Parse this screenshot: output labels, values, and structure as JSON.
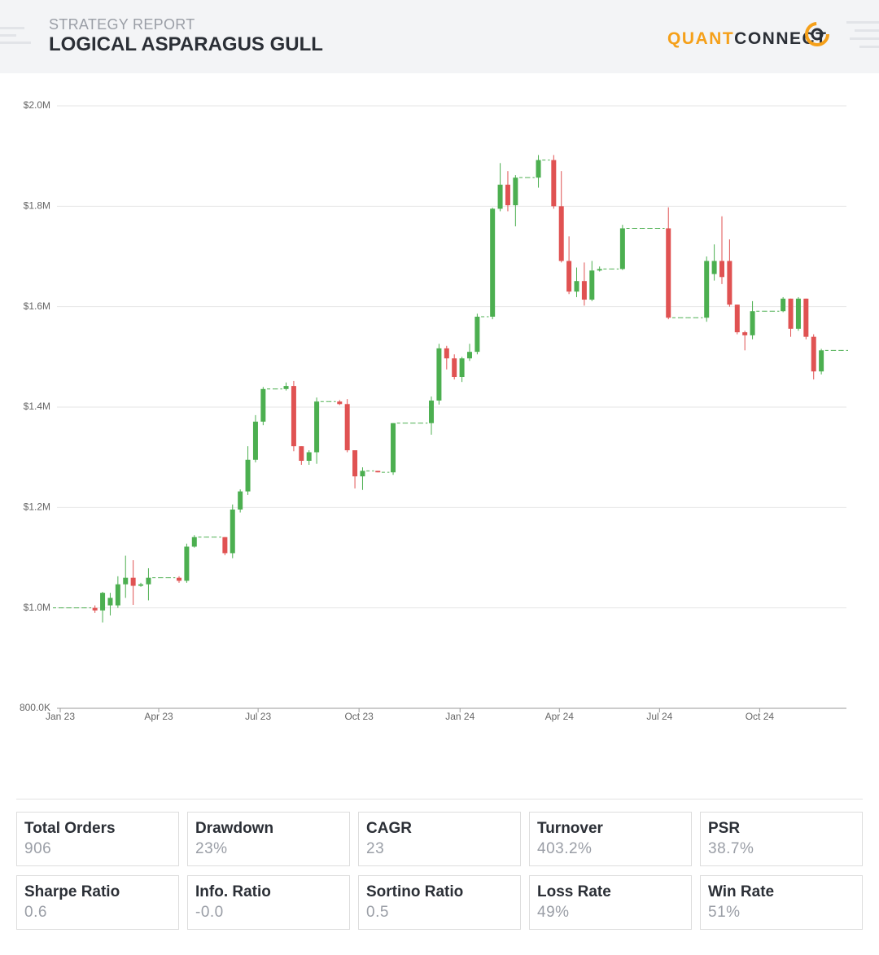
{
  "header": {
    "subtitle": "STRATEGY REPORT",
    "title": "LOGICAL ASPARAGUS GULL",
    "logo_primary": "QUANT",
    "logo_secondary": "CONNECT"
  },
  "chart_data": {
    "type": "candlestick",
    "categories": [
      null,
      null,
      null,
      null,
      null,
      null,
      null,
      null,
      null,
      null,
      null,
      null,
      null,
      null,
      null,
      null,
      null,
      null,
      null,
      null,
      null,
      null,
      null,
      null,
      null,
      null,
      null,
      null,
      null,
      null,
      null,
      null,
      null,
      null,
      null,
      null,
      null,
      null,
      null,
      null,
      null,
      null,
      null,
      null,
      null,
      null,
      null,
      null,
      null,
      null,
      null,
      null,
      null,
      null,
      null,
      null,
      null,
      null,
      null,
      null,
      null,
      null,
      null,
      null,
      null,
      null,
      null,
      null,
      null,
      null,
      null,
      null,
      null,
      null,
      null,
      null,
      null,
      null,
      null,
      null,
      null,
      null,
      null,
      null,
      null,
      null,
      null,
      null,
      null,
      null,
      null,
      null,
      null,
      null,
      null,
      null,
      null,
      null,
      null,
      null,
      null,
      null,
      null,
      null
    ],
    "open": [
      1000000,
      1000000,
      1000000,
      1000000,
      1000000,
      1000000,
      995000,
      1005000,
      1005000,
      1047000,
      1060000,
      1044000,
      1047000,
      1060000,
      1060000,
      1060000,
      1060000,
      1054000,
      1122000,
      1141000,
      1141000,
      1141000,
      1141000,
      1109000,
      1196000,
      1232000,
      1295000,
      1371000,
      1436000,
      1436000,
      1436000,
      1442000,
      1322000,
      1293000,
      1310000,
      1411000,
      1411000,
      1411000,
      1406000,
      1314000,
      1262000,
      1273000,
      1273000,
      1270000,
      1270000,
      1368000,
      1368000,
      1368000,
      1368000,
      1368000,
      1413000,
      1517000,
      1497000,
      1460000,
      1497000,
      1510000,
      1580000,
      1580000,
      1795000,
      1843000,
      1802000,
      1857000,
      1857000,
      1857000,
      1892000,
      1892000,
      1800000,
      1691000,
      1630000,
      1651000,
      1614000,
      1672000,
      1675000,
      1675000,
      1675000,
      1756000,
      1756000,
      1756000,
      1756000,
      1756000,
      1756000,
      1578000,
      1578000,
      1578000,
      1578000,
      1578000,
      1665000,
      1691000,
      1691000,
      1604000,
      1549000,
      1543000,
      1591000,
      1591000,
      1591000,
      1591000,
      1616000,
      1556000,
      1616000,
      1540000,
      1471000,
      1513000,
      1513000,
      1513000
    ],
    "high": [
      1000000,
      1000000,
      1000000,
      1000000,
      1000000,
      1005000,
      1032000,
      1030000,
      1063000,
      1104000,
      1095000,
      1050000,
      1079000,
      1060000,
      1060000,
      1060000,
      1063000,
      1128000,
      1145000,
      1141000,
      1141000,
      1141000,
      1141000,
      1206000,
      1236000,
      1322000,
      1384000,
      1440000,
      1436000,
      1436000,
      1449000,
      1452000,
      1322000,
      1314000,
      1419000,
      1411000,
      1411000,
      1414000,
      1416000,
      1314000,
      1280000,
      1273000,
      1273000,
      1270000,
      1368000,
      1368000,
      1368000,
      1368000,
      1368000,
      1421000,
      1526000,
      1522000,
      1505000,
      1500000,
      1526000,
      1586000,
      1580000,
      1797000,
      1886000,
      1870000,
      1862000,
      1857000,
      1857000,
      1902000,
      1892000,
      1902000,
      1870000,
      1740000,
      1678000,
      1688000,
      1691000,
      1680000,
      1675000,
      1675000,
      1763000,
      1756000,
      1756000,
      1756000,
      1756000,
      1756000,
      1798000,
      1578000,
      1578000,
      1578000,
      1578000,
      1700000,
      1724000,
      1780000,
      1734000,
      1604000,
      1552000,
      1611000,
      1591000,
      1591000,
      1591000,
      1619000,
      1616000,
      1619000,
      1616000,
      1545000,
      1516000,
      1513000,
      1513000,
      1513000
    ],
    "low": [
      1000000,
      1000000,
      1000000,
      1000000,
      1000000,
      990000,
      971000,
      985000,
      1000000,
      1020000,
      1006000,
      1042000,
      1015000,
      1060000,
      1060000,
      1060000,
      1050000,
      1050000,
      1120000,
      1141000,
      1141000,
      1141000,
      1105000,
      1099000,
      1190000,
      1225000,
      1290000,
      1364000,
      1436000,
      1436000,
      1433000,
      1312000,
      1285000,
      1285000,
      1287000,
      1411000,
      1411000,
      1404000,
      1310000,
      1238000,
      1235000,
      1273000,
      1270000,
      1270000,
      1265000,
      1368000,
      1368000,
      1368000,
      1368000,
      1345000,
      1405000,
      1475000,
      1455000,
      1450000,
      1492000,
      1505000,
      1580000,
      1575000,
      1790000,
      1790000,
      1760000,
      1857000,
      1857000,
      1837000,
      1892000,
      1795000,
      1688000,
      1625000,
      1619000,
      1602000,
      1611000,
      1670000,
      1675000,
      1675000,
      1673000,
      1756000,
      1756000,
      1756000,
      1756000,
      1756000,
      1575000,
      1578000,
      1578000,
      1578000,
      1578000,
      1570000,
      1652000,
      1645000,
      1600000,
      1545000,
      1513000,
      1535000,
      1591000,
      1591000,
      1591000,
      1589000,
      1540000,
      1552000,
      1535000,
      1455000,
      1465000,
      1513000,
      1513000,
      1513000
    ],
    "close": [
      1000000,
      1000000,
      1000000,
      1000000,
      1000000,
      995000,
      1030000,
      1020000,
      1047000,
      1060000,
      1044000,
      1047000,
      1060000,
      1060000,
      1060000,
      1060000,
      1054000,
      1122000,
      1141000,
      1141000,
      1141000,
      1141000,
      1109000,
      1196000,
      1232000,
      1295000,
      1371000,
      1436000,
      1436000,
      1436000,
      1442000,
      1322000,
      1293000,
      1310000,
      1411000,
      1411000,
      1411000,
      1406000,
      1314000,
      1262000,
      1273000,
      1273000,
      1270000,
      1270000,
      1368000,
      1368000,
      1368000,
      1368000,
      1368000,
      1413000,
      1517000,
      1497000,
      1460000,
      1497000,
      1510000,
      1580000,
      1580000,
      1795000,
      1843000,
      1802000,
      1857000,
      1857000,
      1857000,
      1892000,
      1892000,
      1800000,
      1691000,
      1630000,
      1651000,
      1614000,
      1672000,
      1675000,
      1675000,
      1675000,
      1756000,
      1756000,
      1756000,
      1756000,
      1756000,
      1756000,
      1578000,
      1578000,
      1578000,
      1578000,
      1578000,
      1691000,
      1691000,
      1659000,
      1604000,
      1549000,
      1543000,
      1591000,
      1591000,
      1591000,
      1591000,
      1616000,
      1556000,
      1616000,
      1540000,
      1471000,
      1513000,
      1513000,
      1513000,
      1513000
    ],
    "up_color": "#4caf50",
    "down_color": "#e05252",
    "xlim": [
      -0.5,
      103.5
    ],
    "xticks": [
      {
        "value": 0.46,
        "label": "Jan 23"
      },
      {
        "value": 13.34,
        "label": "Apr 23"
      },
      {
        "value": 26.34,
        "label": "Jul 23"
      },
      {
        "value": 39.54,
        "label": "Oct 23"
      },
      {
        "value": 52.75,
        "label": "Jan 24"
      },
      {
        "value": 65.74,
        "label": "Apr 24"
      },
      {
        "value": 78.84,
        "label": "Jul 24"
      },
      {
        "value": 91.94,
        "label": "Oct 24"
      }
    ],
    "ylim": [
      800000,
      2000000
    ],
    "yticks": [
      {
        "value": 800000,
        "label": "800.0K"
      },
      {
        "value": 1000000,
        "label": "$1.0M"
      },
      {
        "value": 1200000,
        "label": "$1.2M"
      },
      {
        "value": 1400000,
        "label": "$1.4M"
      },
      {
        "value": 1600000,
        "label": "$1.6M"
      },
      {
        "value": 1800000,
        "label": "$1.8M"
      },
      {
        "value": 2000000,
        "label": "$2.0M"
      }
    ],
    "grid": true
  },
  "stats": [
    {
      "label": "Total Orders",
      "value": "906"
    },
    {
      "label": "Drawdown",
      "value": "23%"
    },
    {
      "label": "CAGR",
      "value": "23"
    },
    {
      "label": "Turnover",
      "value": "403.2%"
    },
    {
      "label": "PSR",
      "value": "38.7%"
    },
    {
      "label": "Sharpe Ratio",
      "value": "0.6"
    },
    {
      "label": "Info. Ratio",
      "value": "-0.0"
    },
    {
      "label": "Sortino Ratio",
      "value": "0.5"
    },
    {
      "label": "Loss Rate",
      "value": "49%"
    },
    {
      "label": "Win Rate",
      "value": "51%"
    }
  ]
}
